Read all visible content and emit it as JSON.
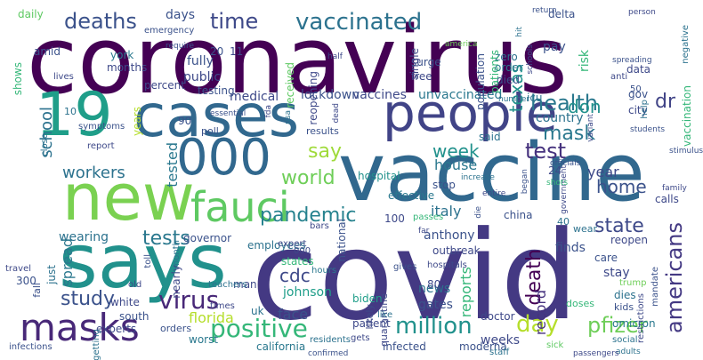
{
  "cloud": {
    "words": [
      {
        "text": "coronavirus",
        "color": "#440154"
      },
      {
        "text": "covid",
        "color": "#443983"
      },
      {
        "text": "vaccine",
        "color": "#31688e"
      },
      {
        "text": "says",
        "color": "#21918c"
      },
      {
        "text": "new",
        "color": "#7ad151"
      },
      {
        "text": "19",
        "color": "#1f9e89"
      },
      {
        "text": "cases",
        "color": "#31688e"
      },
      {
        "text": "people",
        "color": "#414487"
      },
      {
        "text": "000",
        "color": "#31688e"
      },
      {
        "text": "fauci",
        "color": "#5ec962"
      },
      {
        "text": "masks",
        "color": "#482878"
      },
      {
        "text": "deaths",
        "color": "#3b528b"
      },
      {
        "text": "vaccinated",
        "color": "#2c728e"
      },
      {
        "text": "time",
        "color": "#3e4989"
      },
      {
        "text": "health",
        "color": "#2a788e"
      },
      {
        "text": "pandemic",
        "color": "#26828e"
      },
      {
        "text": "positive",
        "color": "#35b779"
      },
      {
        "text": "million",
        "color": "#21918c"
      },
      {
        "text": "tests",
        "color": "#2a788e"
      },
      {
        "text": "virus",
        "color": "#482878"
      },
      {
        "text": "study",
        "color": "#3b528b"
      },
      {
        "text": "world",
        "color": "#6ece58"
      },
      {
        "text": "workers",
        "color": "#2c728e"
      },
      {
        "text": "week",
        "color": "#21918c"
      },
      {
        "text": "mask",
        "color": "#2a788e"
      },
      {
        "text": "test",
        "color": "#46327e"
      },
      {
        "text": "day",
        "color": "#b5de2b"
      },
      {
        "text": "pfizer",
        "color": "#6ece58"
      },
      {
        "text": "state",
        "color": "#3e4989"
      },
      {
        "text": "americans",
        "color": "#443983"
      },
      {
        "text": "home",
        "color": "#3b528b"
      },
      {
        "text": "don",
        "color": "#21918c"
      },
      {
        "text": "dr",
        "color": "#414487"
      },
      {
        "text": "texas",
        "color": "#21918c"
      },
      {
        "text": "say",
        "color": "#9fda3a"
      },
      {
        "text": "cdc",
        "color": "#3e4989"
      },
      {
        "text": "death",
        "color": "#440154"
      },
      {
        "text": "record",
        "color": "#46327e"
      },
      {
        "text": "spread",
        "color": "#2a788e"
      },
      {
        "text": "school",
        "color": "#2c728e"
      },
      {
        "text": "tested",
        "color": "#2a788e"
      },
      {
        "text": "reports",
        "color": "#35b779"
      },
      {
        "text": "florida",
        "color": "#b5de2b"
      },
      {
        "text": "wearing",
        "color": "#2c728e"
      },
      {
        "text": "house",
        "color": "#2a788e"
      },
      {
        "text": "year",
        "color": "#3e4989"
      },
      {
        "text": "days",
        "color": "#3b528b"
      },
      {
        "text": "johnson",
        "color": "#1f9e89"
      },
      {
        "text": "face",
        "color": "#3b528b"
      },
      {
        "text": "italy",
        "color": "#2c728e"
      },
      {
        "text": "anthony",
        "color": "#3b528b"
      },
      {
        "text": "hospital",
        "color": "#21918c"
      },
      {
        "text": "effective",
        "color": "#2a788e"
      },
      {
        "text": "stay",
        "color": "#3e4989"
      },
      {
        "text": "finds",
        "color": "#3b528b"
      },
      {
        "text": "doctor",
        "color": "#3e4989"
      },
      {
        "text": "gates",
        "color": "#3b528b"
      },
      {
        "text": "news",
        "color": "#2c728e"
      },
      {
        "text": "weeks",
        "color": "#3e4989"
      },
      {
        "text": "moderna",
        "color": "#3b528b"
      },
      {
        "text": "infected",
        "color": "#3b528b"
      },
      {
        "text": "omicron",
        "color": "#2a788e"
      },
      {
        "text": "dies",
        "color": "#2c728e"
      },
      {
        "text": "country",
        "color": "#2c728e"
      },
      {
        "text": "unvaccinated",
        "color": "#2a788e"
      },
      {
        "text": "vaccines",
        "color": "#3e4989"
      },
      {
        "text": "lockdown",
        "color": "#3b528b"
      },
      {
        "text": "medical",
        "color": "#3e4989"
      },
      {
        "text": "testing",
        "color": "#3b528b"
      },
      {
        "text": "public",
        "color": "#3e4989"
      },
      {
        "text": "fully",
        "color": "#3b528b"
      },
      {
        "text": "percent",
        "color": "#3e4989"
      },
      {
        "text": "york",
        "color": "#2a788e"
      },
      {
        "text": "months",
        "color": "#3e4989"
      },
      {
        "text": "amid",
        "color": "#3b528b"
      },
      {
        "text": "shows",
        "color": "#35b779"
      },
      {
        "text": "daily",
        "color": "#5ec962"
      },
      {
        "text": "governor",
        "color": "#3b528b"
      },
      {
        "text": "employees",
        "color": "#2c728e"
      },
      {
        "text": "white",
        "color": "#3e4989"
      },
      {
        "text": "south",
        "color": "#3b528b"
      },
      {
        "text": "uk",
        "color": "#2c728e"
      },
      {
        "text": "man",
        "color": "#3e4989"
      },
      {
        "text": "worst",
        "color": "#2a788e"
      },
      {
        "text": "orders",
        "color": "#3b528b"
      },
      {
        "text": "california",
        "color": "#2a788e"
      },
      {
        "text": "patient",
        "color": "#3e4989"
      },
      {
        "text": "biden",
        "color": "#1f9e89"
      },
      {
        "text": "states",
        "color": "#35b779"
      },
      {
        "text": "reopening",
        "color": "#3e4989"
      },
      {
        "text": "received",
        "color": "#5ec962"
      },
      {
        "text": "surge",
        "color": "#3b528b"
      },
      {
        "text": "free",
        "color": "#3e4989"
      },
      {
        "text": "zero",
        "color": "#2c728e"
      },
      {
        "text": "order",
        "color": "#2a788e"
      },
      {
        "text": "died",
        "color": "#3b528b"
      },
      {
        "text": "icu",
        "color": "#2c728e"
      },
      {
        "text": "delta",
        "color": "#3b528b"
      },
      {
        "text": "pay",
        "color": "#3b528b"
      },
      {
        "text": "risk",
        "color": "#35b779"
      },
      {
        "text": "data",
        "color": "#3e4989"
      },
      {
        "text": "gov",
        "color": "#3b528b"
      },
      {
        "text": "city",
        "color": "#3e4989"
      },
      {
        "text": "vaccination",
        "color": "#35b779"
      },
      {
        "text": "calls",
        "color": "#3e4989"
      },
      {
        "text": "care",
        "color": "#3b528b"
      },
      {
        "text": "wear",
        "color": "#2c728e"
      },
      {
        "text": "reopen",
        "color": "#3e4989"
      },
      {
        "text": "china",
        "color": "#3b528b"
      },
      {
        "text": "outbreak",
        "color": "#3e4989"
      },
      {
        "text": "stop",
        "color": "#3b528b"
      },
      {
        "text": "said",
        "color": "#2c728e"
      },
      {
        "text": "population",
        "color": "#3b528b"
      },
      {
        "text": "patients",
        "color": "#35b779"
      },
      {
        "text": "single",
        "color": "#3e4989"
      },
      {
        "text": "national",
        "color": "#3b528b"
      },
      {
        "text": "quarantine",
        "color": "#3e4989"
      },
      {
        "text": "teachers",
        "color": "#2c728e"
      },
      {
        "text": "hospitals",
        "color": "#3e4989"
      },
      {
        "text": "poll",
        "color": "#3b528b"
      },
      {
        "text": "years",
        "color": "#b5de2b"
      },
      {
        "text": "report",
        "color": "#3e4989"
      },
      {
        "text": "close",
        "color": "#2c728e"
      },
      {
        "text": "symptoms",
        "color": "#3b528b"
      },
      {
        "text": "lives",
        "color": "#3e4989"
      },
      {
        "text": "emergency",
        "color": "#3b528b"
      },
      {
        "text": "just",
        "color": "#2c728e"
      },
      {
        "text": "travel",
        "color": "#3e4989"
      },
      {
        "text": "fall",
        "color": "#3b528b"
      },
      {
        "text": "experts",
        "color": "#3e4989"
      },
      {
        "text": "infections",
        "color": "#3b528b"
      },
      {
        "text": "getting",
        "color": "#2c728e"
      },
      {
        "text": "old",
        "color": "#3e4989"
      },
      {
        "text": "toll",
        "color": "#3b528b"
      },
      {
        "text": "month",
        "color": "#2c728e"
      },
      {
        "text": "times",
        "color": "#3e4989"
      },
      {
        "text": "nearly",
        "color": "#3e4989"
      },
      {
        "text": "results",
        "color": "#3b528b"
      },
      {
        "text": "residents",
        "color": "#2c728e"
      },
      {
        "text": "expert",
        "color": "#3e4989"
      },
      {
        "text": "hours",
        "color": "#2a788e"
      },
      {
        "text": "bars",
        "color": "#3e4989"
      },
      {
        "text": "passes",
        "color": "#35b779"
      },
      {
        "text": "gives",
        "color": "#3b528b"
      },
      {
        "text": "likely",
        "color": "#3e4989"
      },
      {
        "text": "like",
        "color": "#2c728e"
      },
      {
        "text": "gets",
        "color": "#3e4989"
      },
      {
        "text": "confirmed",
        "color": "#3b528b"
      },
      {
        "text": "staff",
        "color": "#2c728e"
      },
      {
        "text": "sick",
        "color": "#5ec962"
      },
      {
        "text": "doses",
        "color": "#35b779"
      },
      {
        "text": "kids",
        "color": "#3b528b"
      },
      {
        "text": "trump",
        "color": "#6ece58"
      },
      {
        "text": "social",
        "color": "#2c728e"
      },
      {
        "text": "restrictions",
        "color": "#3e4989"
      },
      {
        "text": "mandate",
        "color": "#3b528b"
      },
      {
        "text": "adults",
        "color": "#2c728e"
      },
      {
        "text": "passengers",
        "color": "#3e4989"
      },
      {
        "text": "students",
        "color": "#3b528b"
      },
      {
        "text": "family",
        "color": "#3e4989"
      },
      {
        "text": "stimulus",
        "color": "#3b528b"
      },
      {
        "text": "help",
        "color": "#2c728e"
      },
      {
        "text": "anti",
        "color": "#3e4989"
      },
      {
        "text": "spreading",
        "color": "#3b528b"
      },
      {
        "text": "negative",
        "color": "#2c728e"
      },
      {
        "text": "person",
        "color": "#3e4989"
      },
      {
        "text": "return",
        "color": "#3b528b"
      },
      {
        "text": "schools",
        "color": "#3e4989"
      },
      {
        "text": "hit",
        "color": "#2c728e"
      },
      {
        "text": "america",
        "color": "#6ece58"
      },
      {
        "text": "half",
        "color": "#3e4989"
      },
      {
        "text": "require",
        "color": "#3b528b"
      },
      {
        "text": "fda",
        "color": "#3e4989"
      },
      {
        "text": "usa",
        "color": "#2c728e"
      },
      {
        "text": "essential",
        "color": "#3b528b"
      },
      {
        "text": "dead",
        "color": "#3e4989"
      },
      {
        "text": "number",
        "color": "#2c728e"
      },
      {
        "text": "variant",
        "color": "#3e4989"
      },
      {
        "text": "officials",
        "color": "#3b528b"
      },
      {
        "text": "government",
        "color": "#3e4989"
      },
      {
        "text": "shots",
        "color": "#35b779"
      },
      {
        "text": "began",
        "color": "#3b528b"
      },
      {
        "text": "entire",
        "color": "#3e4989"
      },
      {
        "text": "increase",
        "color": "#2c728e"
      },
      {
        "text": "die",
        "color": "#3b528b"
      },
      {
        "text": "far",
        "color": "#3e4989"
      },
      {
        "text": "10",
        "color": "#2c728e"
      },
      {
        "text": "11",
        "color": "#3e4989"
      },
      {
        "text": "20",
        "color": "#3b528b"
      },
      {
        "text": "24",
        "color": "#3e4989"
      },
      {
        "text": "40",
        "color": "#2c728e"
      },
      {
        "text": "50",
        "color": "#3b528b"
      },
      {
        "text": "80",
        "color": "#3e4989"
      },
      {
        "text": "90",
        "color": "#3b528b"
      },
      {
        "text": "100",
        "color": "#3e4989"
      },
      {
        "text": "300",
        "color": "#3b528b"
      },
      {
        "text": "000",
        "color": "#3e4989"
      }
    ]
  }
}
